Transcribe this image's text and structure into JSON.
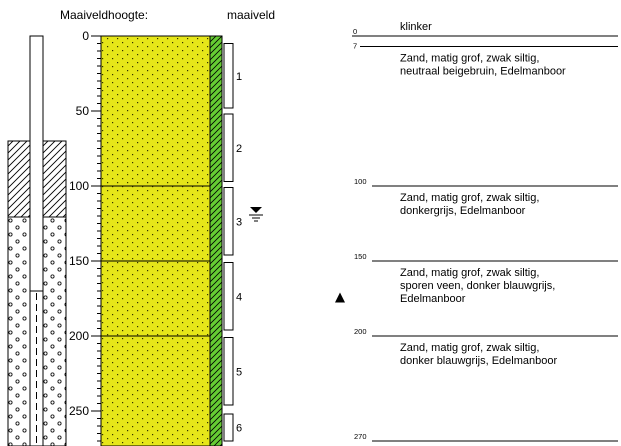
{
  "header": {
    "elevation_label": "Maaiveldhoogte:",
    "surface_label": "maaiveld"
  },
  "depth_axis": {
    "range_cm": [
      0,
      270
    ],
    "tick_values": [
      0,
      50,
      100,
      150,
      200,
      250
    ],
    "tick_labels": [
      "0",
      "50",
      "100",
      "150",
      "200",
      "250"
    ]
  },
  "well": {
    "seal_from_cm": 70,
    "seal_to_cm": 115,
    "gravel_from_cm": 115,
    "gravel_to_cm": 270,
    "screen_from_cm": 170,
    "screen_to_cm": 270
  },
  "groundwater_level_cm": 118,
  "samples": [
    {
      "label": "1",
      "from_cm": 5,
      "to_cm": 48
    },
    {
      "label": "2",
      "from_cm": 52,
      "to_cm": 97
    },
    {
      "label": "3",
      "from_cm": 101,
      "to_cm": 146
    },
    {
      "label": "4",
      "from_cm": 151,
      "to_cm": 196
    },
    {
      "label": "5",
      "from_cm": 201,
      "to_cm": 246
    },
    {
      "label": "6",
      "from_cm": 252,
      "to_cm": 270
    }
  ],
  "triangle_marker_depth_cm": 175,
  "layers": [
    {
      "top_cm": 0,
      "top_label": "0",
      "bottom_label": "7",
      "description": [
        "klinker"
      ]
    },
    {
      "top_cm": 7,
      "top_label": "7",
      "description": [
        "Zand, matig grof, zwak siltig,",
        "neutraal beigebruin, Edelmanboor"
      ]
    },
    {
      "top_cm": 100,
      "top_label": "100",
      "description": [
        "Zand, matig grof, zwak siltig,",
        "donkergrijs, Edelmanboor"
      ]
    },
    {
      "top_cm": 150,
      "top_label": "150",
      "description": [
        "Zand, matig grof, zwak siltig,",
        "sporen veen, donker blauwgrijs,",
        "Edelmanboor"
      ]
    },
    {
      "top_cm": 200,
      "top_label": "200",
      "description": [
        "Zand, matig grof, zwak siltig,",
        "donker blauwgrijs, Edelmanboor"
      ]
    }
  ],
  "end_depth": {
    "depth_cm": 270,
    "label": "270"
  },
  "colors": {
    "sand_fill": "#e6e619",
    "sand_dot": "#333300",
    "surface_strip": "#66cc33",
    "line": "#000000",
    "background": "#ffffff"
  }
}
